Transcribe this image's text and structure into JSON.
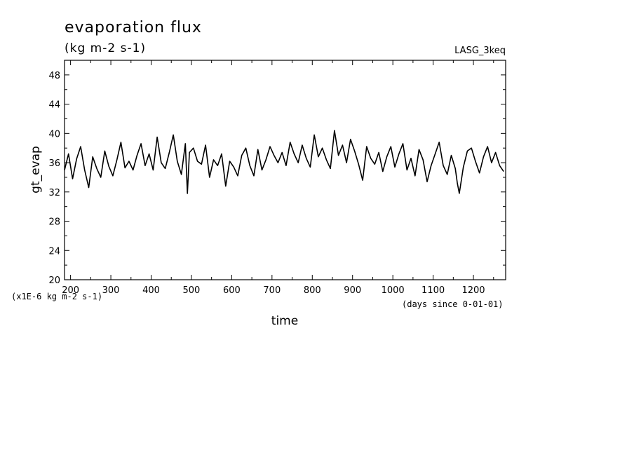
{
  "chart_data": {
    "type": "line",
    "title": "evaporation flux",
    "subtitle": "(kg m-2 s-1)",
    "tag": "LASG_3keq",
    "xlabel": "time",
    "ylabel": "gt_evap",
    "x_unit_note": "(days since 0-01-01)",
    "y_unit_note": "(x1E-6 kg m-2 s-1)",
    "xlim": [
      185,
      1280
    ],
    "ylim": [
      20,
      50
    ],
    "x_ticks": [
      200,
      300,
      400,
      500,
      600,
      700,
      800,
      900,
      1000,
      1100,
      1200
    ],
    "y_ticks": [
      20,
      24,
      28,
      32,
      36,
      40,
      44,
      48
    ],
    "grid": false,
    "series": [
      {
        "color": "#000000",
        "x": [
          185,
          195,
          205,
          215,
          225,
          235,
          245,
          255,
          265,
          275,
          285,
          295,
          305,
          315,
          325,
          335,
          345,
          355,
          365,
          375,
          385,
          395,
          405,
          415,
          425,
          435,
          445,
          455,
          465,
          475,
          485,
          490,
          495,
          505,
          515,
          525,
          535,
          545,
          555,
          565,
          575,
          585,
          595,
          605,
          615,
          625,
          635,
          645,
          655,
          665,
          675,
          685,
          695,
          705,
          715,
          725,
          735,
          745,
          755,
          765,
          775,
          785,
          795,
          805,
          815,
          825,
          835,
          845,
          855,
          865,
          875,
          885,
          895,
          905,
          915,
          925,
          935,
          945,
          955,
          965,
          975,
          985,
          995,
          1005,
          1015,
          1025,
          1035,
          1045,
          1055,
          1065,
          1075,
          1085,
          1095,
          1105,
          1115,
          1125,
          1135,
          1145,
          1155,
          1160,
          1165,
          1175,
          1185,
          1195,
          1205,
          1215,
          1225,
          1235,
          1245,
          1255,
          1265,
          1275
        ],
        "values": [
          35.0,
          37.2,
          33.8,
          36.5,
          38.2,
          35.0,
          32.6,
          36.8,
          35.2,
          34.0,
          37.6,
          35.5,
          34.2,
          36.4,
          38.8,
          35.3,
          36.2,
          35.0,
          37.0,
          38.6,
          35.6,
          37.2,
          35.0,
          39.5,
          36.0,
          35.2,
          37.4,
          39.8,
          36.2,
          34.4,
          38.6,
          31.8,
          37.4,
          38.0,
          36.2,
          35.8,
          38.4,
          34.0,
          36.4,
          35.6,
          37.2,
          32.8,
          36.2,
          35.4,
          34.2,
          37.0,
          38.0,
          35.6,
          34.2,
          37.8,
          35.0,
          36.4,
          38.2,
          37.0,
          36.0,
          37.4,
          35.6,
          38.8,
          37.2,
          36.0,
          38.4,
          36.6,
          35.4,
          39.8,
          36.8,
          38.0,
          36.4,
          35.2,
          40.4,
          37.0,
          38.4,
          36.0,
          39.2,
          37.6,
          35.8,
          33.6,
          38.2,
          36.6,
          35.8,
          37.4,
          34.8,
          36.8,
          38.2,
          35.4,
          37.2,
          38.6,
          35.0,
          36.6,
          34.2,
          37.8,
          36.4,
          33.4,
          35.6,
          37.2,
          38.8,
          35.6,
          34.4,
          37.0,
          35.2,
          33.2,
          31.8,
          35.4,
          37.6,
          38.0,
          36.2,
          34.6,
          36.8,
          38.2,
          36.0,
          37.4,
          35.6,
          34.8
        ]
      }
    ]
  }
}
